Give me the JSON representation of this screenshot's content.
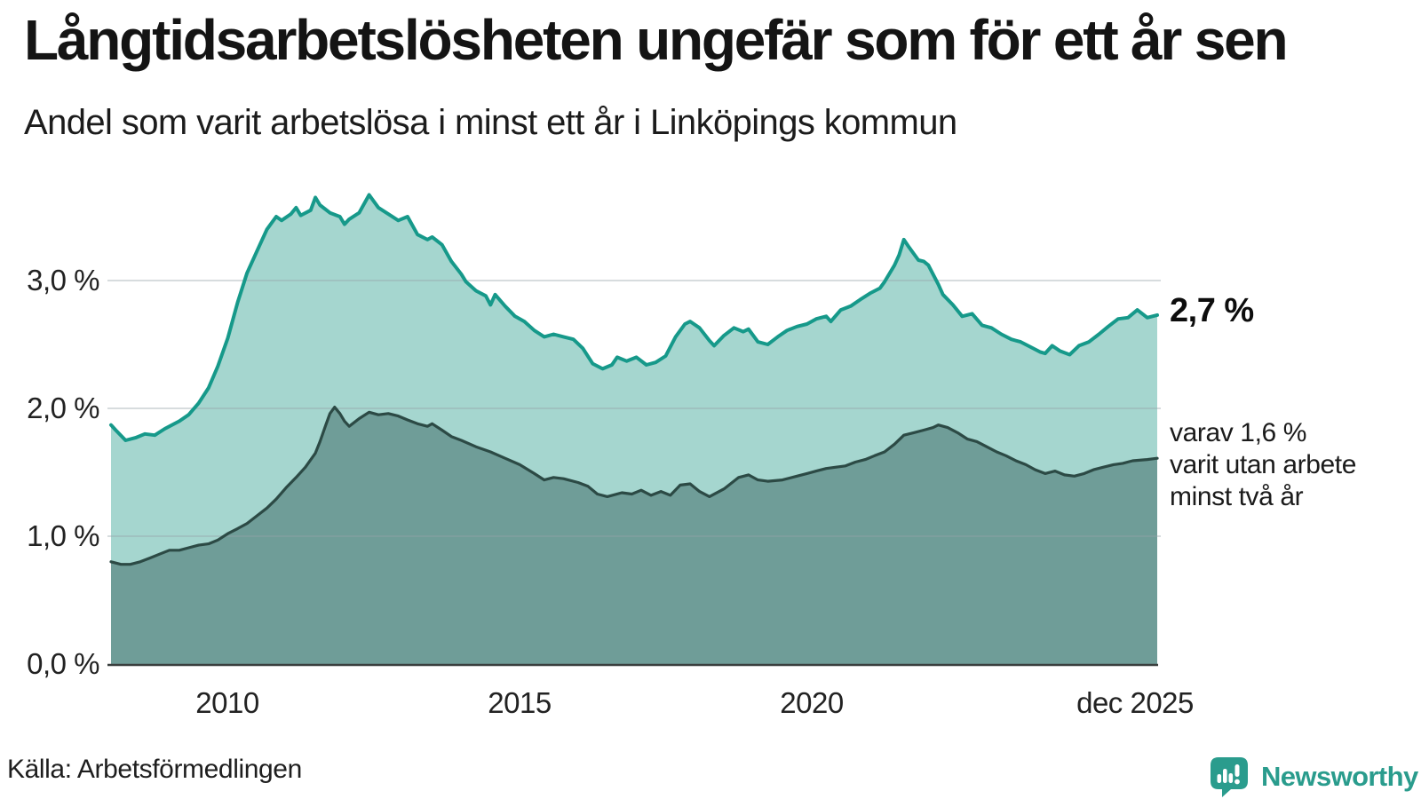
{
  "header": {
    "title": "Långtidsarbetslösheten ungefär som för ett år sen",
    "subtitle": "Andel som varit arbetslösa i minst ett år i Linköpings kommun"
  },
  "colors": {
    "accent_line": "#16998a",
    "accent_fill": "#a5d6cf",
    "dark_line": "#2c4a45",
    "dark_fill": "#6f9d98",
    "gridline": "rgba(150,162,168,0.38)",
    "axis_line": "#3a3f3e",
    "brand": "#2a9c8d"
  },
  "chart_data": {
    "type": "area",
    "title": "Långtidsarbetslösheten ungefär som för ett år sen",
    "subtitle": "Andel som varit arbetslösa i minst ett år i Linköpings kommun",
    "unit": "%",
    "xlim": [
      2008.0,
      2025.92
    ],
    "ylim": [
      0,
      3.8
    ],
    "grid": "horizontal",
    "x_ticks": [
      {
        "t": 2010.0,
        "label": "2010"
      },
      {
        "t": 2015.0,
        "label": "2015"
      },
      {
        "t": 2020.0,
        "label": "2020"
      },
      {
        "t": 2025.54,
        "label": "dec 2025"
      }
    ],
    "y_ticks": [
      {
        "v": 0,
        "label": "0,0 %"
      },
      {
        "v": 1,
        "label": "1,0 %"
      },
      {
        "v": 2,
        "label": "2,0 %"
      },
      {
        "v": 3,
        "label": "3,0 %"
      }
    ],
    "end_labels": {
      "primary": "2,7 %",
      "secondary": "varav 1,6 %\nvarit utan arbete\nminst två år"
    },
    "series": [
      {
        "name": "Arbetslösa minst ett år",
        "line_color": "#16998a",
        "fill_color": "#a5d6cf",
        "line_width": 4,
        "end_value": 2.7,
        "points": [
          [
            2008.0,
            1.87
          ],
          [
            2008.08,
            1.83
          ],
          [
            2008.25,
            1.75
          ],
          [
            2008.42,
            1.77
          ],
          [
            2008.58,
            1.8
          ],
          [
            2008.75,
            1.79
          ],
          [
            2008.92,
            1.84
          ],
          [
            2009.0,
            1.86
          ],
          [
            2009.17,
            1.9
          ],
          [
            2009.33,
            1.95
          ],
          [
            2009.5,
            2.04
          ],
          [
            2009.67,
            2.16
          ],
          [
            2009.83,
            2.33
          ],
          [
            2010.0,
            2.55
          ],
          [
            2010.17,
            2.83
          ],
          [
            2010.33,
            3.06
          ],
          [
            2010.5,
            3.23
          ],
          [
            2010.67,
            3.4
          ],
          [
            2010.83,
            3.5
          ],
          [
            2010.92,
            3.47
          ],
          [
            2011.08,
            3.52
          ],
          [
            2011.17,
            3.57
          ],
          [
            2011.25,
            3.51
          ],
          [
            2011.42,
            3.55
          ],
          [
            2011.5,
            3.65
          ],
          [
            2011.58,
            3.59
          ],
          [
            2011.75,
            3.53
          ],
          [
            2011.92,
            3.5
          ],
          [
            2012.0,
            3.44
          ],
          [
            2012.08,
            3.48
          ],
          [
            2012.25,
            3.53
          ],
          [
            2012.42,
            3.67
          ],
          [
            2012.5,
            3.62
          ],
          [
            2012.58,
            3.57
          ],
          [
            2012.75,
            3.52
          ],
          [
            2012.92,
            3.47
          ],
          [
            2013.08,
            3.5
          ],
          [
            2013.25,
            3.36
          ],
          [
            2013.42,
            3.32
          ],
          [
            2013.5,
            3.34
          ],
          [
            2013.67,
            3.28
          ],
          [
            2013.83,
            3.15
          ],
          [
            2014.0,
            3.05
          ],
          [
            2014.08,
            2.99
          ],
          [
            2014.25,
            2.92
          ],
          [
            2014.42,
            2.88
          ],
          [
            2014.5,
            2.81
          ],
          [
            2014.58,
            2.89
          ],
          [
            2014.75,
            2.8
          ],
          [
            2014.92,
            2.72
          ],
          [
            2015.08,
            2.68
          ],
          [
            2015.25,
            2.61
          ],
          [
            2015.42,
            2.56
          ],
          [
            2015.58,
            2.58
          ],
          [
            2015.75,
            2.56
          ],
          [
            2015.92,
            2.54
          ],
          [
            2016.08,
            2.47
          ],
          [
            2016.25,
            2.35
          ],
          [
            2016.42,
            2.31
          ],
          [
            2016.58,
            2.34
          ],
          [
            2016.67,
            2.4
          ],
          [
            2016.83,
            2.37
          ],
          [
            2017.0,
            2.4
          ],
          [
            2017.17,
            2.34
          ],
          [
            2017.33,
            2.36
          ],
          [
            2017.5,
            2.41
          ],
          [
            2017.67,
            2.56
          ],
          [
            2017.83,
            2.66
          ],
          [
            2017.92,
            2.68
          ],
          [
            2018.08,
            2.63
          ],
          [
            2018.25,
            2.53
          ],
          [
            2018.33,
            2.49
          ],
          [
            2018.5,
            2.57
          ],
          [
            2018.67,
            2.63
          ],
          [
            2018.83,
            2.6
          ],
          [
            2018.92,
            2.62
          ],
          [
            2019.08,
            2.52
          ],
          [
            2019.25,
            2.5
          ],
          [
            2019.42,
            2.56
          ],
          [
            2019.58,
            2.61
          ],
          [
            2019.75,
            2.64
          ],
          [
            2019.92,
            2.66
          ],
          [
            2020.08,
            2.7
          ],
          [
            2020.25,
            2.72
          ],
          [
            2020.33,
            2.68
          ],
          [
            2020.5,
            2.77
          ],
          [
            2020.67,
            2.8
          ],
          [
            2020.83,
            2.85
          ],
          [
            2021.0,
            2.9
          ],
          [
            2021.17,
            2.94
          ],
          [
            2021.25,
            2.99
          ],
          [
            2021.42,
            3.12
          ],
          [
            2021.5,
            3.2
          ],
          [
            2021.58,
            3.32
          ],
          [
            2021.67,
            3.26
          ],
          [
            2021.83,
            3.16
          ],
          [
            2021.92,
            3.15
          ],
          [
            2022.0,
            3.12
          ],
          [
            2022.17,
            2.97
          ],
          [
            2022.25,
            2.89
          ],
          [
            2022.42,
            2.81
          ],
          [
            2022.58,
            2.72
          ],
          [
            2022.75,
            2.74
          ],
          [
            2022.92,
            2.65
          ],
          [
            2023.08,
            2.63
          ],
          [
            2023.25,
            2.58
          ],
          [
            2023.42,
            2.54
          ],
          [
            2023.58,
            2.52
          ],
          [
            2023.75,
            2.48
          ],
          [
            2023.92,
            2.44
          ],
          [
            2024.0,
            2.43
          ],
          [
            2024.12,
            2.49
          ],
          [
            2024.25,
            2.45
          ],
          [
            2024.42,
            2.42
          ],
          [
            2024.58,
            2.49
          ],
          [
            2024.75,
            2.52
          ],
          [
            2024.92,
            2.58
          ],
          [
            2025.08,
            2.64
          ],
          [
            2025.25,
            2.7
          ],
          [
            2025.42,
            2.71
          ],
          [
            2025.58,
            2.77
          ],
          [
            2025.75,
            2.71
          ],
          [
            2025.92,
            2.73
          ]
        ]
      },
      {
        "name": "Arbetslösa minst två år",
        "line_color": "#2c4a45",
        "fill_color": "#6f9d98",
        "line_width": 3.2,
        "end_value": 1.6,
        "points": [
          [
            2008.0,
            0.8
          ],
          [
            2008.17,
            0.78
          ],
          [
            2008.33,
            0.78
          ],
          [
            2008.5,
            0.8
          ],
          [
            2008.67,
            0.83
          ],
          [
            2008.83,
            0.86
          ],
          [
            2009.0,
            0.89
          ],
          [
            2009.17,
            0.89
          ],
          [
            2009.33,
            0.91
          ],
          [
            2009.5,
            0.93
          ],
          [
            2009.67,
            0.94
          ],
          [
            2009.83,
            0.97
          ],
          [
            2010.0,
            1.02
          ],
          [
            2010.17,
            1.06
          ],
          [
            2010.33,
            1.1
          ],
          [
            2010.5,
            1.16
          ],
          [
            2010.67,
            1.22
          ],
          [
            2010.83,
            1.29
          ],
          [
            2011.0,
            1.38
          ],
          [
            2011.17,
            1.46
          ],
          [
            2011.33,
            1.54
          ],
          [
            2011.5,
            1.65
          ],
          [
            2011.58,
            1.74
          ],
          [
            2011.67,
            1.86
          ],
          [
            2011.75,
            1.96
          ],
          [
            2011.83,
            2.01
          ],
          [
            2011.92,
            1.96
          ],
          [
            2012.0,
            1.9
          ],
          [
            2012.08,
            1.86
          ],
          [
            2012.25,
            1.92
          ],
          [
            2012.42,
            1.97
          ],
          [
            2012.58,
            1.95
          ],
          [
            2012.75,
            1.96
          ],
          [
            2012.92,
            1.94
          ],
          [
            2013.08,
            1.91
          ],
          [
            2013.25,
            1.88
          ],
          [
            2013.42,
            1.86
          ],
          [
            2013.5,
            1.88
          ],
          [
            2013.67,
            1.83
          ],
          [
            2013.83,
            1.78
          ],
          [
            2014.0,
            1.75
          ],
          [
            2014.25,
            1.7
          ],
          [
            2014.5,
            1.66
          ],
          [
            2014.75,
            1.61
          ],
          [
            2015.0,
            1.56
          ],
          [
            2015.25,
            1.49
          ],
          [
            2015.42,
            1.44
          ],
          [
            2015.58,
            1.46
          ],
          [
            2015.75,
            1.45
          ],
          [
            2016.0,
            1.42
          ],
          [
            2016.17,
            1.39
          ],
          [
            2016.33,
            1.33
          ],
          [
            2016.5,
            1.31
          ],
          [
            2016.75,
            1.34
          ],
          [
            2016.92,
            1.33
          ],
          [
            2017.08,
            1.36
          ],
          [
            2017.25,
            1.32
          ],
          [
            2017.42,
            1.35
          ],
          [
            2017.58,
            1.32
          ],
          [
            2017.75,
            1.4
          ],
          [
            2017.92,
            1.41
          ],
          [
            2018.08,
            1.35
          ],
          [
            2018.25,
            1.31
          ],
          [
            2018.5,
            1.37
          ],
          [
            2018.75,
            1.46
          ],
          [
            2018.92,
            1.48
          ],
          [
            2019.08,
            1.44
          ],
          [
            2019.25,
            1.43
          ],
          [
            2019.5,
            1.44
          ],
          [
            2019.75,
            1.47
          ],
          [
            2019.92,
            1.49
          ],
          [
            2020.08,
            1.51
          ],
          [
            2020.25,
            1.53
          ],
          [
            2020.42,
            1.54
          ],
          [
            2020.58,
            1.55
          ],
          [
            2020.75,
            1.58
          ],
          [
            2020.92,
            1.6
          ],
          [
            2021.08,
            1.63
          ],
          [
            2021.25,
            1.66
          ],
          [
            2021.42,
            1.72
          ],
          [
            2021.58,
            1.79
          ],
          [
            2021.75,
            1.81
          ],
          [
            2021.92,
            1.83
          ],
          [
            2022.08,
            1.85
          ],
          [
            2022.17,
            1.87
          ],
          [
            2022.33,
            1.85
          ],
          [
            2022.5,
            1.81
          ],
          [
            2022.67,
            1.76
          ],
          [
            2022.83,
            1.74
          ],
          [
            2023.0,
            1.7
          ],
          [
            2023.17,
            1.66
          ],
          [
            2023.33,
            1.63
          ],
          [
            2023.5,
            1.59
          ],
          [
            2023.67,
            1.56
          ],
          [
            2023.83,
            1.52
          ],
          [
            2024.0,
            1.49
          ],
          [
            2024.17,
            1.51
          ],
          [
            2024.33,
            1.48
          ],
          [
            2024.5,
            1.47
          ],
          [
            2024.67,
            1.49
          ],
          [
            2024.83,
            1.52
          ],
          [
            2025.0,
            1.54
          ],
          [
            2025.17,
            1.56
          ],
          [
            2025.33,
            1.57
          ],
          [
            2025.5,
            1.59
          ],
          [
            2025.75,
            1.6
          ],
          [
            2025.92,
            1.61
          ]
        ]
      }
    ]
  },
  "footer": {
    "source": "Källa: Arbetsförmedlingen",
    "brand": "Newsworthy"
  }
}
